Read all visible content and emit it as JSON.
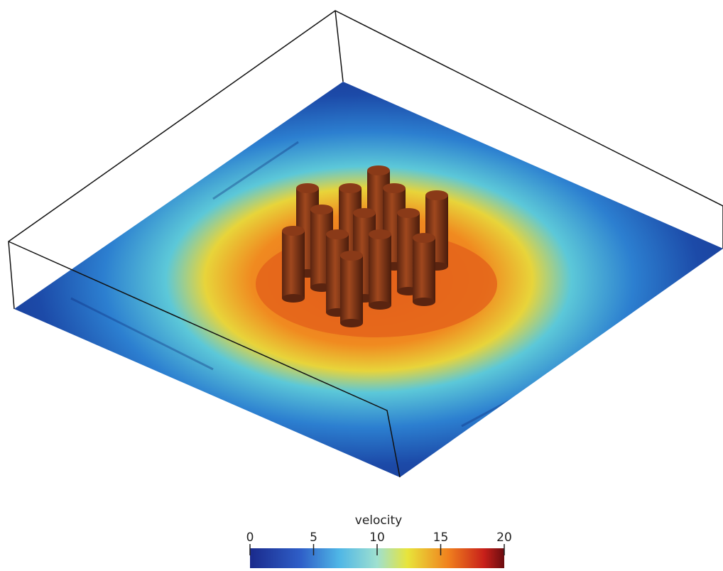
{
  "colorbar": {
    "title": "velocity",
    "lim": [
      0,
      20
    ],
    "ticks": [
      0,
      5,
      10,
      15,
      20
    ]
  }
}
